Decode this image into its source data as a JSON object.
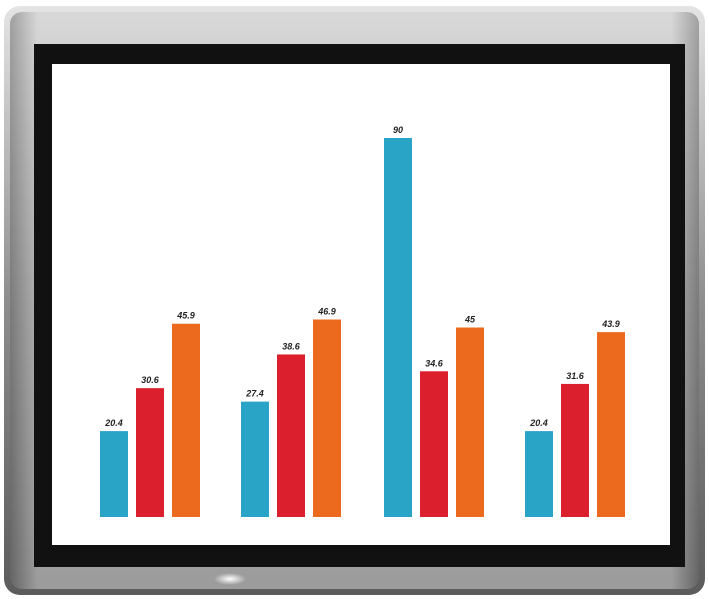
{
  "chart_data": {
    "type": "bar",
    "title": "",
    "xlabel": "",
    "ylabel": "",
    "ylim": [
      0,
      90
    ],
    "grid": false,
    "legend": "none",
    "categories": [
      "",
      "",
      "",
      ""
    ],
    "series": [
      {
        "values": [
          20.4,
          27.4,
          90,
          20.4
        ],
        "color": "#2aa4c6",
        "labels": [
          "20.4",
          "27.4",
          "90",
          "20.4"
        ]
      },
      {
        "values": [
          30.6,
          38.6,
          34.6,
          31.6
        ],
        "color": "#db1f2c",
        "labels": [
          "30.6",
          "38.6",
          "34.6",
          "31.6"
        ]
      },
      {
        "values": [
          45.9,
          46.9,
          45,
          43.9
        ],
        "color": "#ec6a1d",
        "labels": [
          "45.9",
          "46.9",
          "45",
          "43.9"
        ]
      }
    ]
  },
  "colors": {
    "frame_outer": "#a9a9a9",
    "bezel": "#111111",
    "screen": "#ffffff"
  }
}
